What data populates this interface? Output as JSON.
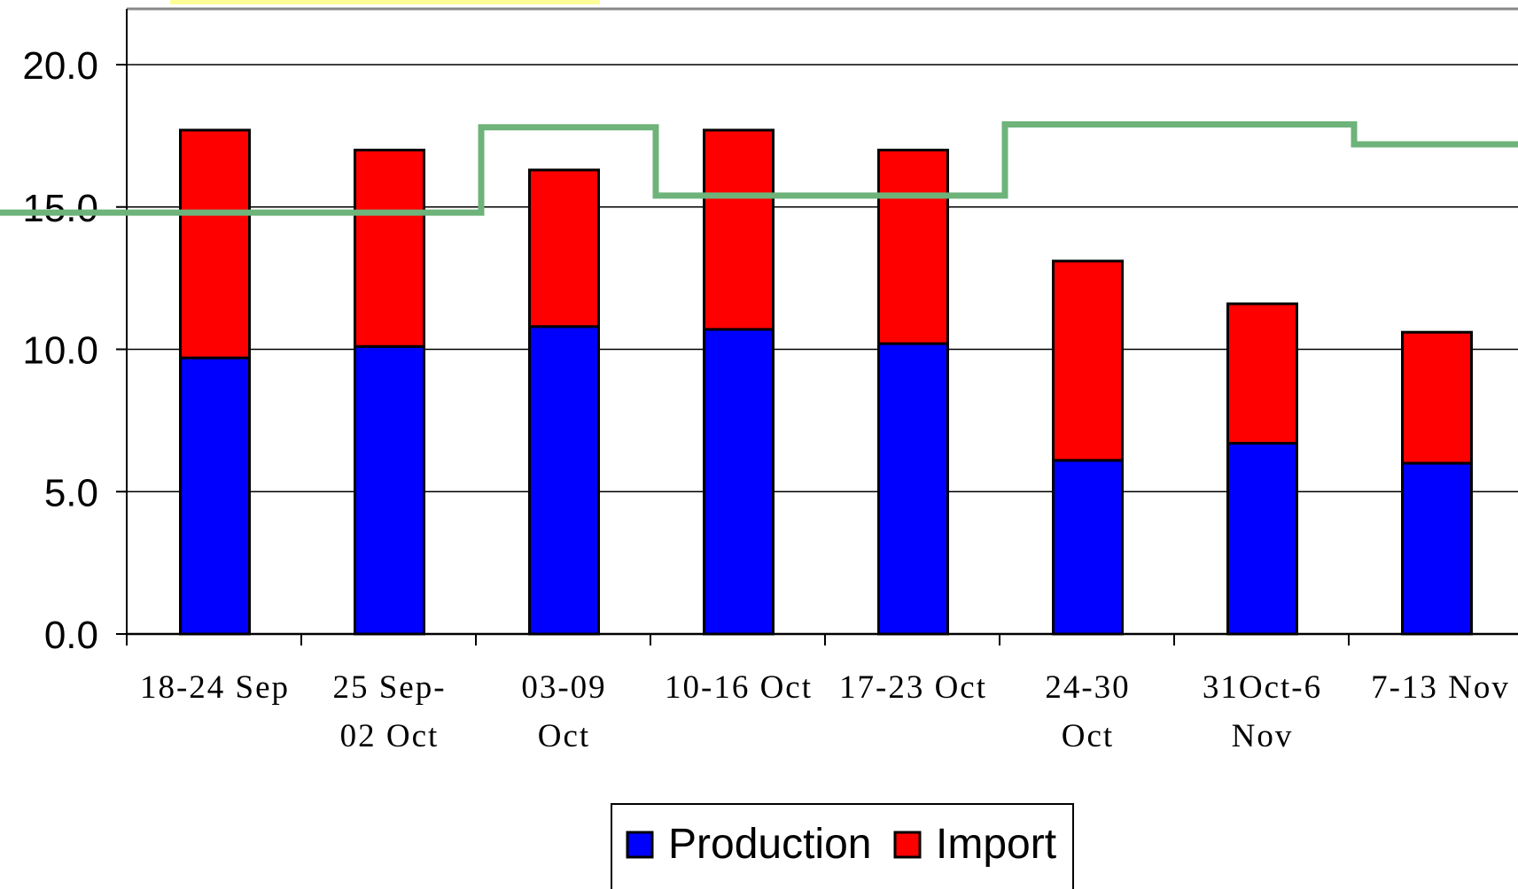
{
  "chart_data": {
    "type": "bar",
    "stacked": true,
    "categories": [
      [
        "18-24 Sep"
      ],
      [
        "25 Sep-",
        "02 Oct"
      ],
      [
        "03-09",
        "Oct"
      ],
      [
        "10-16 Oct"
      ],
      [
        "17-23 Oct"
      ],
      [
        "24-30",
        "Oct"
      ],
      [
        "31Oct-6",
        "Nov"
      ],
      [
        "7-13 Nov"
      ]
    ],
    "series": [
      {
        "name": "Production",
        "color": "#0000ff",
        "values": [
          9.7,
          10.1,
          10.8,
          10.7,
          10.2,
          6.1,
          6.7,
          6.0
        ]
      },
      {
        "name": "Import",
        "color": "#ff0000",
        "values": [
          8.0,
          6.9,
          5.5,
          7.0,
          6.8,
          7.0,
          4.9,
          4.6
        ]
      }
    ],
    "step_line": {
      "color": "#6db37a",
      "values": [
        14.8,
        14.8,
        17.8,
        15.4,
        15.4,
        17.9,
        17.9,
        17.2
      ]
    },
    "yticks": [
      "0.0",
      "5.0",
      "10.0",
      "15.0",
      "20.0"
    ],
    "ylim": [
      0,
      20
    ],
    "grid": true,
    "legend": {
      "position": "bottom",
      "items": [
        "Production",
        "Import"
      ]
    }
  }
}
